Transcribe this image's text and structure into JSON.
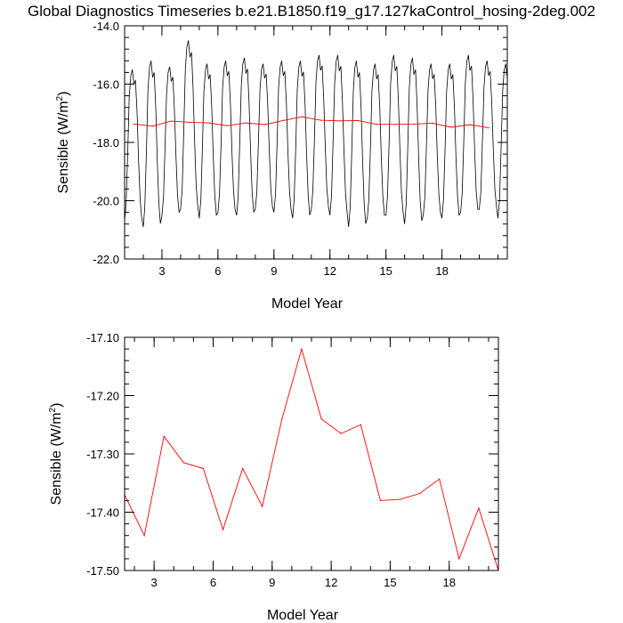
{
  "title": "Global Diagnostics Timeseries b.e21.B1850.f19_g17.127kaControl_hosing-2deg.002",
  "colors": {
    "monthly": "#000000",
    "annual": "#ff0000",
    "axis": "#000000"
  },
  "chart_data": [
    {
      "type": "line",
      "xlabel": "Model Year",
      "ylabel": {
        "text": "Sensible (W/m",
        "sup": "2",
        "tail": ")"
      },
      "xlim": [
        1,
        21.5
      ],
      "ylim": [
        -22.0,
        -14.0
      ],
      "xticks": [
        3,
        6,
        9,
        12,
        15,
        18
      ],
      "yticks": [
        -22.0,
        -20.0,
        -18.0,
        -16.0,
        -14.0
      ],
      "ytick_labels": [
        "-22.0",
        "-20.0",
        "-18.0",
        "-16.0",
        "-14.0"
      ],
      "series": [
        {
          "style": "monthly-seasonal-cycle",
          "color": "#000000",
          "min_values": [
            -20.7,
            -20.9,
            -20.5,
            -20.3,
            -20.6,
            -20.4,
            -20.5,
            -20.3,
            -20.4,
            -20.6,
            -20.3,
            -20.5,
            -20.9,
            -20.6,
            -20.5,
            -20.8,
            -20.5,
            -20.6,
            -20.4,
            -20.3,
            -20.6
          ],
          "max_values": [
            -15.5,
            -15.2,
            -15.4,
            -14.5,
            -15.3,
            -15.2,
            -15.1,
            -15.3,
            -15.2,
            -15.2,
            -15.0,
            -15.0,
            -15.2,
            -15.3,
            -15.0,
            -15.1,
            -15.3,
            -15.3,
            -15.0,
            -15.2,
            -15.3
          ],
          "month_shape": [
            0.0,
            0.12,
            0.45,
            0.82,
            0.96,
            1.0,
            0.9,
            0.93,
            0.72,
            0.4,
            0.14,
            0.02
          ]
        },
        {
          "style": "annual-mean",
          "color": "#ff0000",
          "x": [
            1.5,
            2.5,
            3.5,
            4.5,
            5.5,
            6.5,
            7.5,
            8.5,
            9.5,
            10.5,
            11.5,
            12.5,
            13.5,
            14.5,
            15.5,
            16.5,
            17.5,
            18.5,
            19.5,
            20.5
          ],
          "values": [
            -17.37,
            -17.44,
            -17.27,
            -17.31,
            -17.33,
            -17.43,
            -17.33,
            -17.39,
            -17.25,
            -17.12,
            -17.24,
            -17.26,
            -17.25,
            -17.38,
            -17.38,
            -17.37,
            -17.34,
            -17.48,
            -17.39,
            -17.5
          ]
        }
      ]
    },
    {
      "type": "line",
      "xlabel": "Model Year",
      "ylabel": {
        "text": "Sensible (W/m",
        "sup": "2",
        "tail": ")"
      },
      "xlim": [
        1.5,
        20.5
      ],
      "ylim": [
        -17.5,
        -17.1
      ],
      "xticks": [
        3,
        6,
        9,
        12,
        15,
        18
      ],
      "yticks": [
        -17.5,
        -17.4,
        -17.3,
        -17.2,
        -17.1
      ],
      "ytick_labels": [
        "-17.50",
        "-17.40",
        "-17.30",
        "-17.20",
        "-17.10"
      ],
      "series": [
        {
          "style": "annual-mean",
          "color": "#ff0000",
          "x": [
            1.5,
            2.5,
            3.5,
            4.5,
            5.5,
            6.5,
            7.5,
            8.5,
            9.5,
            10.5,
            11.5,
            12.5,
            13.5,
            14.5,
            15.5,
            16.5,
            17.5,
            18.5,
            19.5,
            20.5
          ],
          "values": [
            -17.37,
            -17.44,
            -17.27,
            -17.315,
            -17.325,
            -17.43,
            -17.325,
            -17.39,
            -17.24,
            -17.12,
            -17.24,
            -17.265,
            -17.25,
            -17.38,
            -17.378,
            -17.368,
            -17.343,
            -17.48,
            -17.393,
            -17.5
          ]
        }
      ]
    }
  ]
}
